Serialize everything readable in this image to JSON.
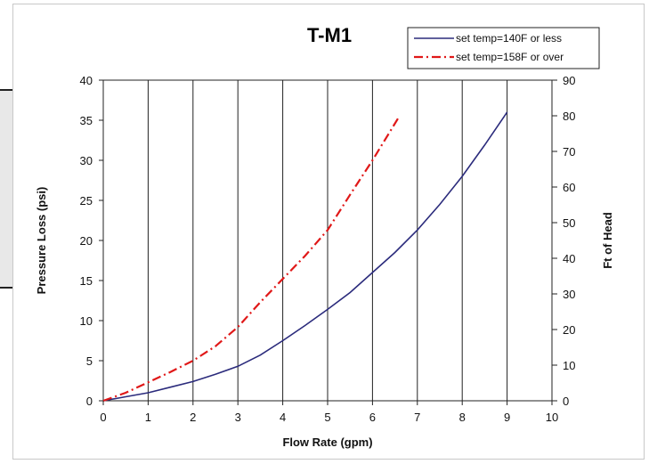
{
  "chart_data": {
    "type": "line",
    "title": "T-M1",
    "xlabel": "Flow Rate (gpm)",
    "ylabel": "Pressure Loss (psi)",
    "y2label": "Ft of Head",
    "xlim": [
      0,
      10
    ],
    "ylim": [
      0,
      40
    ],
    "y2lim": [
      0,
      90
    ],
    "x_ticks": [
      0,
      1,
      2,
      3,
      4,
      5,
      6,
      7,
      8,
      9,
      10
    ],
    "y_ticks": [
      0,
      5,
      10,
      15,
      20,
      25,
      30,
      35,
      40
    ],
    "y2_ticks": [
      0,
      10,
      20,
      30,
      40,
      50,
      60,
      70,
      80,
      90
    ],
    "grid": true,
    "legend_position": "top-right",
    "series": [
      {
        "name": "set temp=140F or less",
        "color": "#2b2b7c",
        "style": "solid",
        "x": [
          0,
          0.5,
          1,
          1.5,
          2,
          2.5,
          3,
          3.5,
          4,
          4.5,
          5,
          5.5,
          6,
          6.5,
          7,
          7.5,
          8,
          8.5,
          9
        ],
        "y": [
          0,
          0.5,
          1.0,
          1.7,
          2.4,
          3.3,
          4.3,
          5.7,
          7.5,
          9.4,
          11.4,
          13.5,
          16.0,
          18.5,
          21.3,
          24.5,
          28.0,
          31.9,
          36.0
        ]
      },
      {
        "name": "set temp=158F or over",
        "color": "#e01818",
        "style": "dashdot",
        "x": [
          0,
          0.5,
          1,
          1.5,
          2,
          2.5,
          3,
          3.5,
          4,
          4.5,
          5,
          5.5,
          6,
          6.6
        ],
        "y": [
          0,
          1.0,
          2.3,
          3.6,
          5.0,
          6.8,
          9.2,
          12.3,
          15.2,
          18.1,
          21.3,
          25.7,
          30.0,
          35.5
        ]
      }
    ]
  }
}
